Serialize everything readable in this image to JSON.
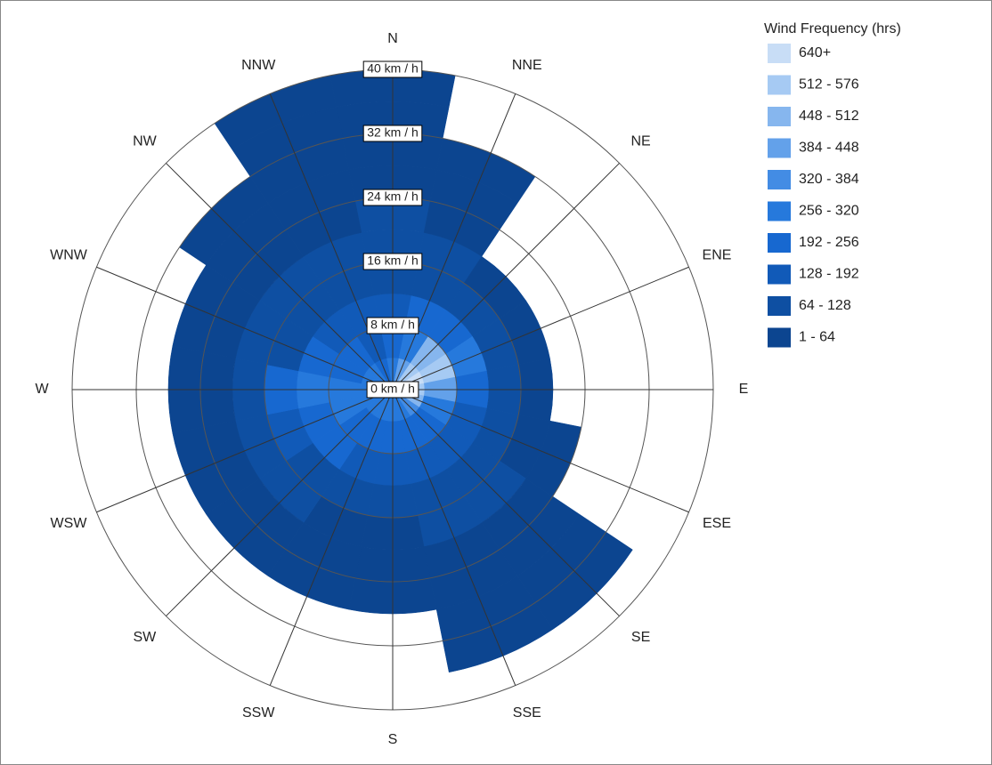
{
  "chart_data": {
    "type": "windrose",
    "categories": [
      "N",
      "NNE",
      "NE",
      "ENE",
      "E",
      "ESE",
      "SE",
      "SSE",
      "S",
      "SSW",
      "SW",
      "WSW",
      "W",
      "WNW",
      "NW",
      "NNW"
    ],
    "rlim": [
      0,
      40
    ],
    "rticks": [
      {
        "value": 0,
        "label": "0 km / h"
      },
      {
        "value": 8,
        "label": "8 km / h"
      },
      {
        "value": 16,
        "label": "16 km / h"
      },
      {
        "value": 24,
        "label": "24 km / h"
      },
      {
        "value": 32,
        "label": "32 km / h"
      },
      {
        "value": 40,
        "label": "40 km / h"
      }
    ],
    "speed_bins": [
      0,
      4,
      8,
      12,
      16,
      20,
      24,
      28,
      32,
      36,
      40
    ],
    "legend_title": "Wind Frequency (hrs)",
    "classes": [
      {
        "label": "640+",
        "color": "#c8ddf6"
      },
      {
        "label": "512 - 576",
        "color": "#a6caf3"
      },
      {
        "label": "448 - 512",
        "color": "#86b6ee"
      },
      {
        "label": "384 - 448",
        "color": "#63a1ea"
      },
      {
        "label": "320 - 384",
        "color": "#438ce4"
      },
      {
        "label": "256 - 320",
        "color": "#2679dc"
      },
      {
        "label": "192 - 256",
        "color": "#1768d0"
      },
      {
        "label": "128 - 192",
        "color": "#115ab8"
      },
      {
        "label": "64 - 128",
        "color": "#0e4fa2"
      },
      {
        "label": "1 - 64",
        "color": "#0c4590"
      }
    ],
    "frequency": [
      [
        300,
        200,
        150,
        120,
        100,
        80,
        60,
        40,
        30,
        20
      ],
      [
        400,
        300,
        200,
        120,
        80,
        60,
        40,
        20,
        null,
        null
      ],
      [
        600,
        450,
        250,
        100,
        60,
        null,
        null,
        null,
        null,
        null
      ],
      [
        650,
        520,
        300,
        100,
        50,
        null,
        null,
        null,
        null,
        null
      ],
      [
        580,
        400,
        200,
        90,
        40,
        null,
        null,
        null,
        null,
        null
      ],
      [
        450,
        300,
        150,
        80,
        40,
        20,
        null,
        null,
        null,
        null
      ],
      [
        350,
        250,
        150,
        100,
        80,
        60,
        40,
        20,
        10,
        null
      ],
      [
        300,
        220,
        150,
        100,
        80,
        60,
        40,
        20,
        10,
        null
      ],
      [
        280,
        200,
        130,
        90,
        60,
        30,
        15,
        null,
        null,
        null
      ],
      [
        260,
        200,
        140,
        90,
        60,
        30,
        15,
        null,
        null,
        null
      ],
      [
        280,
        220,
        200,
        120,
        80,
        40,
        20,
        null,
        null,
        null
      ],
      [
        300,
        260,
        240,
        150,
        90,
        40,
        20,
        null,
        null,
        null
      ],
      [
        300,
        260,
        280,
        240,
        90,
        40,
        20,
        null,
        null,
        null
      ],
      [
        280,
        220,
        200,
        120,
        70,
        40,
        20,
        null,
        null,
        null
      ],
      [
        260,
        200,
        150,
        100,
        70,
        50,
        30,
        15,
        null,
        null
      ],
      [
        250,
        180,
        130,
        100,
        80,
        60,
        40,
        30,
        20,
        10
      ]
    ]
  }
}
